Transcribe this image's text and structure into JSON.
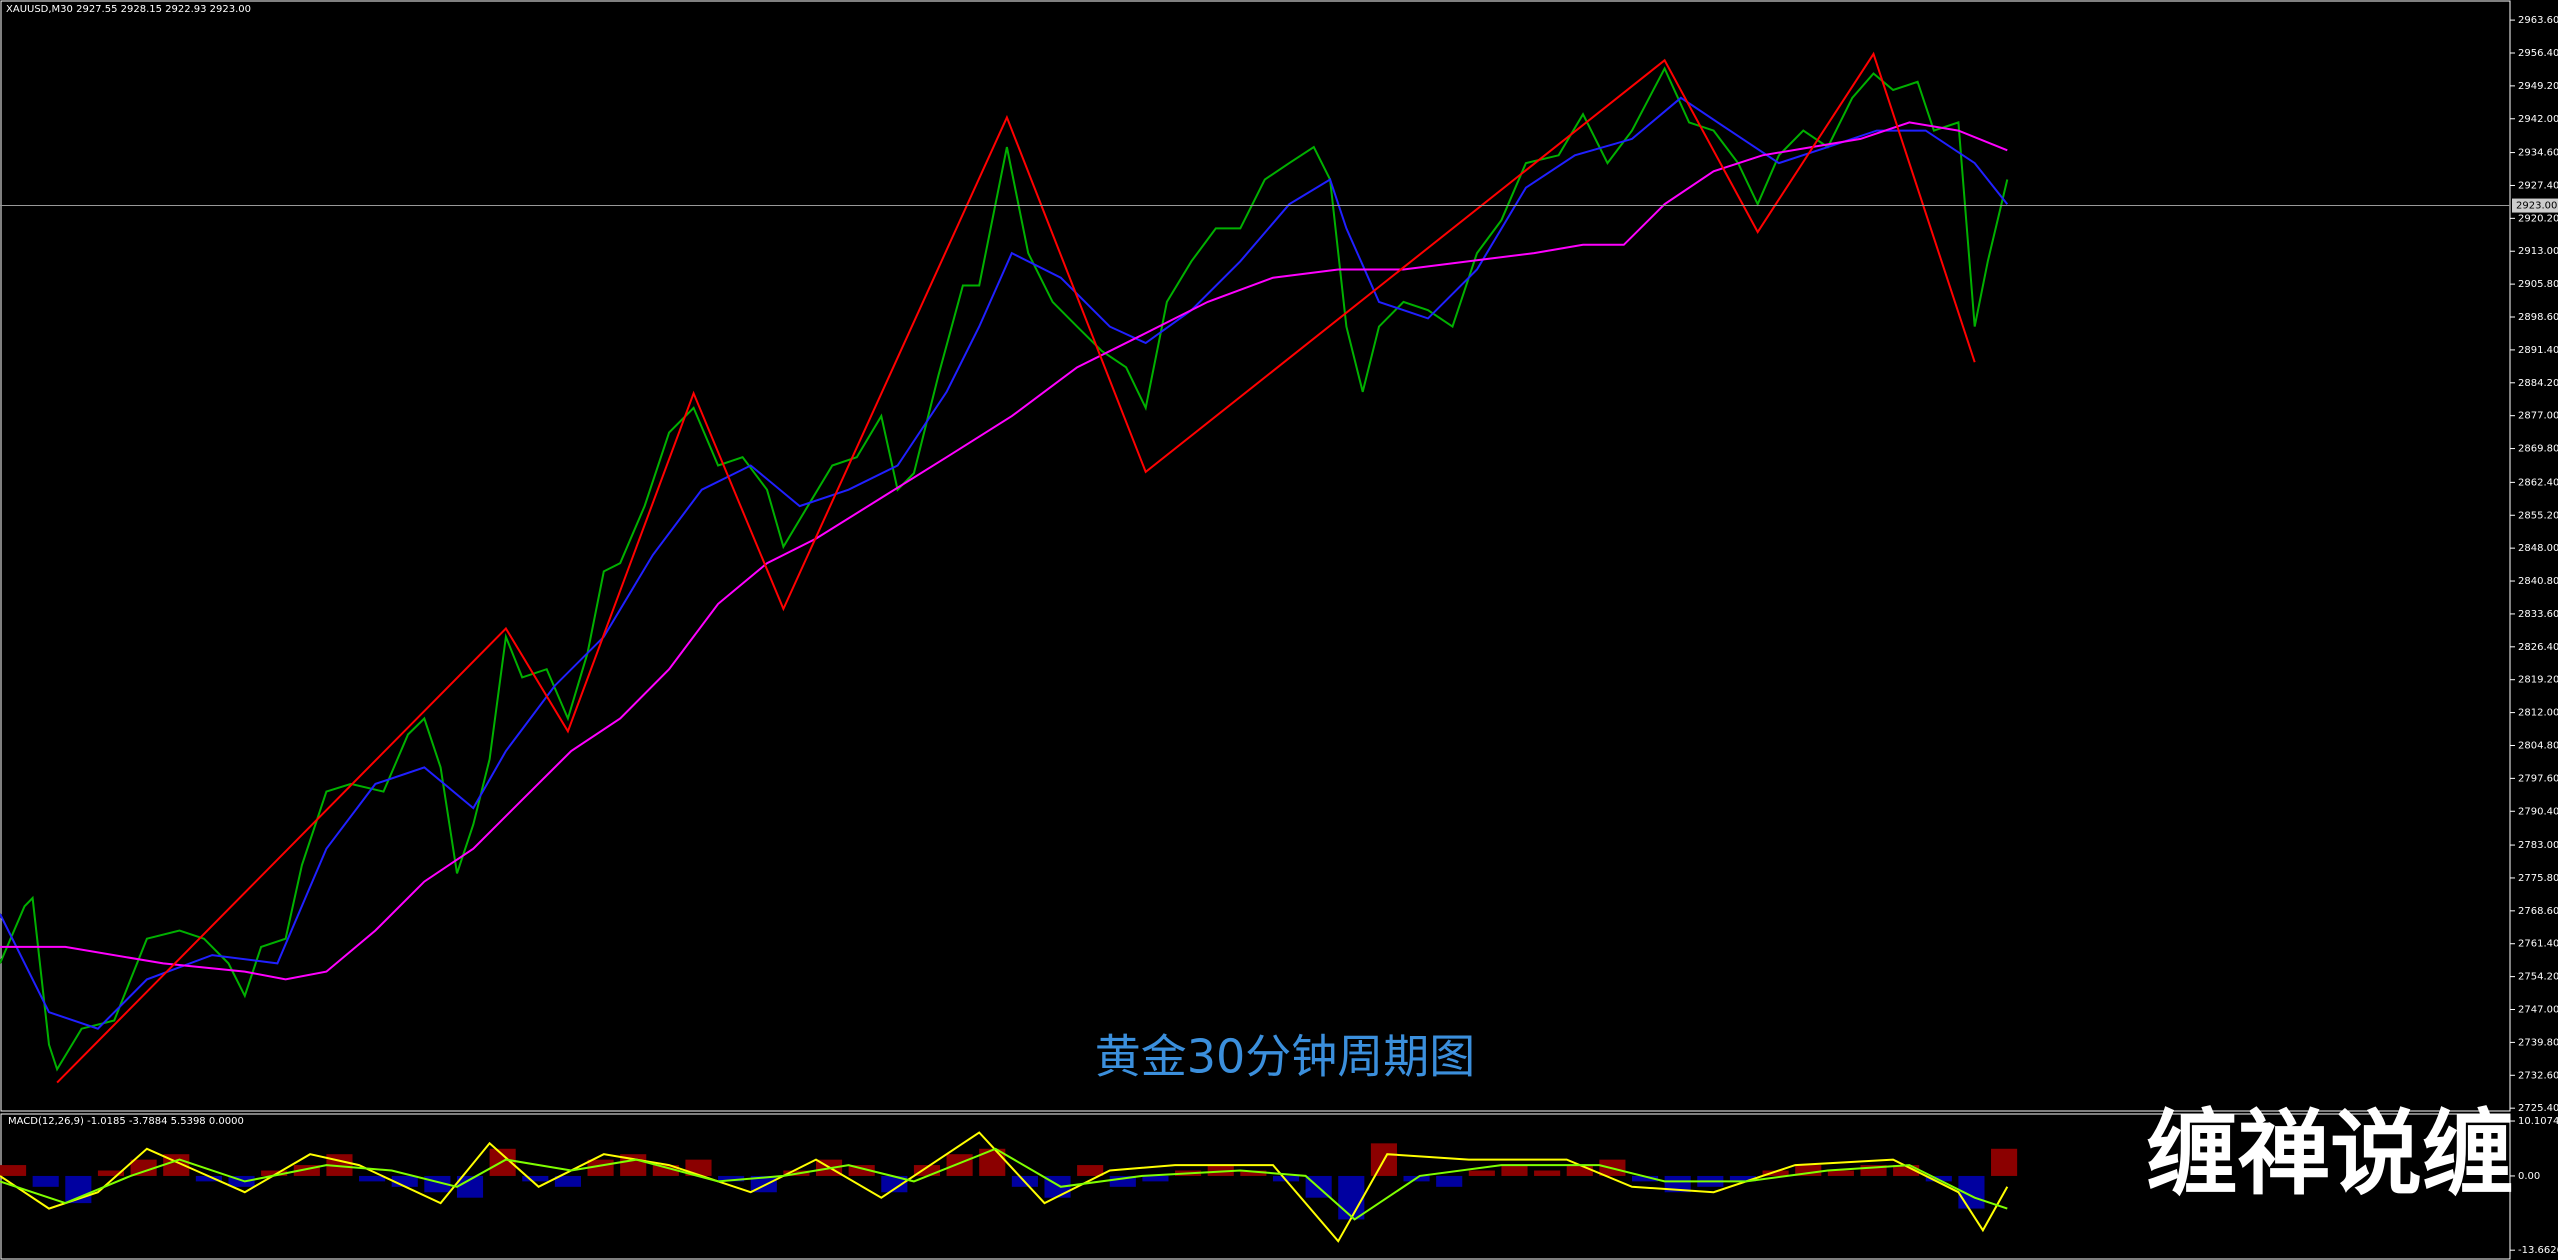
{
  "brand": "缠禅说缠",
  "chart_data": [
    {
      "type": "line",
      "title": "XAUUSD,M30  2927.55 2928.15 2922.93 2923.00",
      "annotation": "黄金30分钟周期图",
      "xlim": [
        0,
        1538
      ],
      "ylim": [
        2725.0,
        2968.0
      ],
      "yticks": [
        {
          "value": 2725.4,
          "label": "2725.40"
        },
        {
          "value": 2732.6,
          "label": "2732.60"
        },
        {
          "value": 2739.8,
          "label": "2739.80"
        },
        {
          "value": 2747.0,
          "label": "2747.00"
        },
        {
          "value": 2754.2,
          "label": "2754.20"
        },
        {
          "value": 2761.4,
          "label": "2761.40"
        },
        {
          "value": 2768.6,
          "label": "2768.60"
        },
        {
          "value": 2775.8,
          "label": "2775.80"
        },
        {
          "value": 2783.0,
          "label": "2783.00"
        },
        {
          "value": 2790.4,
          "label": "2790.40"
        },
        {
          "value": 2797.6,
          "label": "2797.60"
        },
        {
          "value": 2804.8,
          "label": "2804.80"
        },
        {
          "value": 2812.0,
          "label": "2812.00"
        },
        {
          "value": 2819.2,
          "label": "2819.20"
        },
        {
          "value": 2826.4,
          "label": "2826.40"
        },
        {
          "value": 2833.6,
          "label": "2833.60"
        },
        {
          "value": 2840.8,
          "label": "2840.80"
        },
        {
          "value": 2848.0,
          "label": "2848.00"
        },
        {
          "value": 2855.2,
          "label": "2855.20"
        },
        {
          "value": 2862.4,
          "label": "2862.40"
        },
        {
          "value": 2869.8,
          "label": "2869.80"
        },
        {
          "value": 2877.0,
          "label": "2877.00"
        },
        {
          "value": 2884.2,
          "label": "2884.20"
        },
        {
          "value": 2891.4,
          "label": "2891.40"
        },
        {
          "value": 2898.6,
          "label": "2898.60"
        },
        {
          "value": 2905.8,
          "label": "2905.80"
        },
        {
          "value": 2913.0,
          "label": "2913.00"
        },
        {
          "value": 2920.2,
          "label": "2920.20"
        },
        {
          "value": 2927.4,
          "label": "2927.40"
        },
        {
          "value": 2934.6,
          "label": "2934.60"
        },
        {
          "value": 2942.0,
          "label": "2942.00"
        },
        {
          "value": 2949.2,
          "label": "2949.20"
        },
        {
          "value": 2956.4,
          "label": "2956.40"
        },
        {
          "value": 2963.6,
          "label": "2963.60"
        }
      ],
      "current_price": {
        "value": 2923.0,
        "label": "2923.00"
      },
      "series": [
        {
          "color": "#00b000",
          "x": [
            0,
            15,
            20,
            30,
            35,
            50,
            70,
            90,
            110,
            125,
            140,
            150,
            160,
            175,
            185,
            200,
            215,
            235,
            250,
            260,
            270,
            280,
            290,
            300,
            310,
            320,
            335,
            348,
            360,
            370,
            380,
            395,
            410,
            425,
            440,
            455,
            470,
            480,
            495,
            510,
            525,
            540,
            550,
            560,
            575,
            590,
            600,
            617,
            630,
            645,
            660,
            675,
            690,
            702,
            715,
            730,
            745,
            760,
            775,
            790,
            805,
            815,
            825,
            835,
            845,
            860,
            875,
            890,
            905,
            920,
            935,
            955,
            970,
            985,
            1000,
            1020,
            1035,
            1050,
            1065,
            1077,
            1090,
            1105,
            1120,
            1135,
            1148,
            1160,
            1175,
            1185,
            1200,
            1210,
            1218,
            1230
          ],
          "values": [
            2757.1,
            2769.6,
            2771.4,
            2739.3,
            2733.9,
            2742.8,
            2744.6,
            2762.5,
            2764.3,
            2762.5,
            2757.1,
            2750.0,
            2760.7,
            2762.5,
            2778.6,
            2794.7,
            2796.4,
            2794.7,
            2807.2,
            2810.7,
            2800.0,
            2776.8,
            2787.5,
            2801.8,
            2828.6,
            2819.7,
            2821.5,
            2810.7,
            2825.0,
            2842.9,
            2844.7,
            2857.2,
            2873.3,
            2878.7,
            2866.1,
            2867.9,
            2860.8,
            2848.3,
            2857.2,
            2866.1,
            2867.9,
            2876.9,
            2860.8,
            2864.4,
            2885.8,
            2905.5,
            2905.5,
            2935.8,
            2912.6,
            2901.9,
            2896.5,
            2891.2,
            2887.6,
            2878.7,
            2901.9,
            2910.8,
            2918.0,
            2918.0,
            2928.7,
            2932.3,
            2935.8,
            2928.7,
            2896.5,
            2882.2,
            2896.5,
            2901.9,
            2900.1,
            2896.5,
            2912.6,
            2919.8,
            2932.3,
            2934.0,
            2943.0,
            2932.3,
            2939.4,
            2953.0,
            2941.2,
            2939.4,
            2932.3,
            2923.3,
            2934.0,
            2939.4,
            2935.8,
            2946.6,
            2951.9,
            2948.3,
            2950.1,
            2939.4,
            2941.2,
            2896.5,
            2910.8,
            2928.7
          ]
        },
        {
          "color": "#2020ff",
          "x": [
            0,
            30,
            60,
            90,
            130,
            170,
            200,
            230,
            260,
            290,
            310,
            340,
            370,
            400,
            430,
            460,
            490,
            520,
            550,
            580,
            600,
            620,
            650,
            680,
            702,
            730,
            760,
            790,
            815,
            825,
            845,
            875,
            905,
            935,
            965,
            1000,
            1030,
            1060,
            1090,
            1120,
            1150,
            1180,
            1210,
            1230
          ],
          "values": [
            2767.9,
            2746.4,
            2742.8,
            2753.6,
            2758.9,
            2757.1,
            2782.2,
            2796.4,
            2800.0,
            2791.1,
            2803.6,
            2817.9,
            2828.6,
            2846.5,
            2860.8,
            2866.1,
            2857.2,
            2860.8,
            2866.1,
            2882.2,
            2896.5,
            2912.6,
            2907.2,
            2896.5,
            2892.9,
            2900.1,
            2910.8,
            2923.3,
            2928.7,
            2918.0,
            2901.9,
            2898.3,
            2909.0,
            2926.9,
            2934.0,
            2937.6,
            2946.6,
            2939.4,
            2932.3,
            2935.8,
            2939.4,
            2939.4,
            2932.3,
            2923.3
          ]
        },
        {
          "color": "#ff00ff",
          "x": [
            0,
            40,
            100,
            150,
            175,
            200,
            230,
            260,
            290,
            320,
            350,
            380,
            410,
            440,
            470,
            500,
            540,
            580,
            620,
            660,
            700,
            740,
            780,
            820,
            860,
            900,
            940,
            970,
            995,
            1020,
            1050,
            1080,
            1110,
            1140,
            1170,
            1200,
            1230
          ],
          "values": [
            2760.7,
            2760.7,
            2757.1,
            2755.3,
            2753.6,
            2755.3,
            2764.3,
            2775.0,
            2782.2,
            2792.9,
            2803.6,
            2810.7,
            2821.5,
            2835.8,
            2844.7,
            2850.1,
            2859.0,
            2867.9,
            2876.9,
            2887.6,
            2894.7,
            2901.9,
            2907.2,
            2909.0,
            2909.0,
            2910.8,
            2912.6,
            2914.4,
            2914.4,
            2923.3,
            2930.5,
            2934.0,
            2935.8,
            2937.6,
            2941.2,
            2939.4,
            2935.1
          ]
        },
        {
          "color": "#ff0000",
          "x": [
            35,
            310,
            348,
            425,
            480,
            617,
            702,
            1020,
            1077,
            1148,
            1210
          ],
          "values": [
            2731.0,
            2830.4,
            2807.9,
            2881.9,
            2834.7,
            2942.3,
            2864.7,
            2954.8,
            2917.2,
            2956.2,
            2888.7
          ]
        }
      ]
    },
    {
      "type": "macd",
      "title": "MACD(12,26,9) -1.0185 -3.7884 5.5398 0.0000",
      "xlim": [
        0,
        1538
      ],
      "ylim": [
        -15.1,
        11.4
      ],
      "yticks": [
        -13.6626,
        {
          "value": 0,
          "label": "0.00"
        },
        10.1074
      ],
      "up_color": "#8b0000",
      "down_color": "#0000a0",
      "histogram": {
        "x": [
          0,
          20,
          40,
          60,
          80,
          100,
          120,
          140,
          160,
          180,
          200,
          220,
          240,
          260,
          280,
          300,
          320,
          340,
          360,
          380,
          400,
          420,
          440,
          460,
          480,
          500,
          520,
          540,
          560,
          580,
          600,
          620,
          640,
          660,
          680,
          700,
          720,
          740,
          760,
          780,
          800,
          820,
          840,
          860,
          880,
          900,
          920,
          940,
          960,
          980,
          1000,
          1020,
          1040,
          1060,
          1080,
          1100,
          1120,
          1140,
          1160,
          1180,
          1200,
          1220
        ],
        "values": [
          2,
          -2,
          -5,
          1,
          3,
          4,
          -1,
          -2,
          1,
          2,
          4,
          -1,
          -2,
          -3,
          -4,
          5,
          -1,
          -2,
          3,
          4,
          2,
          3,
          -1,
          -3,
          1,
          3,
          2,
          -3,
          2,
          4,
          5,
          -2,
          -4,
          2,
          -2,
          -1,
          1,
          2,
          1,
          -1,
          -4,
          -8,
          6,
          -1,
          -2,
          1,
          2,
          1,
          2,
          3,
          -1,
          -3,
          -2,
          -1,
          1,
          2,
          1,
          2,
          2,
          -1,
          -6,
          5
        ]
      },
      "series": [
        {
          "color": "#ffff00",
          "x": [
            0,
            30,
            60,
            90,
            120,
            150,
            190,
            220,
            270,
            300,
            330,
            370,
            410,
            460,
            500,
            540,
            600,
            640,
            680,
            720,
            780,
            820,
            850,
            900,
            960,
            1000,
            1050,
            1100,
            1160,
            1200,
            1215,
            1230
          ],
          "values": [
            0,
            -6,
            -3,
            5,
            1,
            -3,
            4,
            2,
            -5,
            6,
            -2,
            4,
            2,
            -3,
            3,
            -4,
            8,
            -5,
            1,
            2,
            2,
            -12,
            4,
            3,
            3,
            -2,
            -3,
            2,
            3,
            -3,
            -10,
            -2
          ]
        },
        {
          "color": "#7fff00",
          "x": [
            0,
            40,
            80,
            110,
            150,
            200,
            240,
            280,
            310,
            350,
            390,
            440,
            480,
            520,
            560,
            610,
            650,
            700,
            760,
            800,
            830,
            870,
            920,
            980,
            1020,
            1070,
            1120,
            1170,
            1210,
            1230
          ],
          "values": [
            -1,
            -5,
            0,
            3,
            -1,
            2,
            1,
            -2,
            3,
            1,
            3,
            -1,
            0,
            2,
            -1,
            5,
            -2,
            0,
            1,
            0,
            -8,
            0,
            2,
            2,
            -1,
            -1,
            1,
            2,
            -4,
            -6
          ]
        }
      ]
    }
  ]
}
